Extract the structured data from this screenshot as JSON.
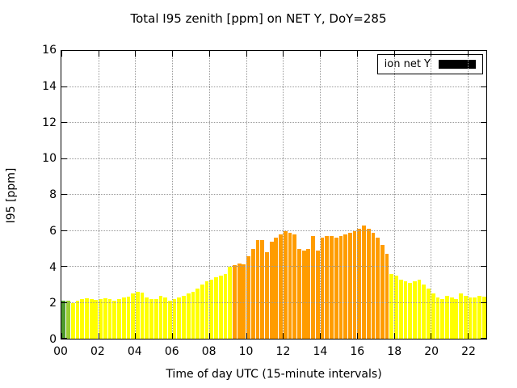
{
  "title": "Total I95 zenith [ppm] on NET Y, DoY=285",
  "xlabel": "Time of day UTC (15-minute intervals)",
  "ylabel": "I95 [ppm]",
  "legend": {
    "label": "ion net Y",
    "swatch_color": "#000000"
  },
  "chart_data": {
    "type": "bar",
    "title": "Total I95 zenith [ppm] on NET Y, DoY=285",
    "xlabel": "Time of day UTC (15-minute intervals)",
    "ylabel": "I95 [ppm]",
    "x_start_hour": 0,
    "x_end_hour": 23,
    "interval_minutes": 15,
    "ylim": [
      0,
      16
    ],
    "yticks": [
      0,
      2,
      4,
      6,
      8,
      10,
      12,
      14,
      16
    ],
    "xticks": [
      "00",
      "02",
      "04",
      "06",
      "08",
      "10",
      "12",
      "14",
      "16",
      "18",
      "20",
      "22"
    ],
    "grid": true,
    "legend_position": "top-right",
    "palette": {
      "green": "#4e9a2e",
      "lightgreen": "#9acd32",
      "yellow": "#ffff00",
      "orange": "#ff9c00"
    },
    "color_segments": [
      {
        "start_index": 0,
        "count": 1,
        "color_key": "green"
      },
      {
        "start_index": 1,
        "count": 1,
        "color_key": "lightgreen"
      },
      {
        "start_index": 2,
        "count": 35,
        "color_key": "yellow"
      },
      {
        "start_index": 37,
        "count": 34,
        "color_key": "orange"
      },
      {
        "start_index": 71,
        "count": 21,
        "color_key": "yellow"
      }
    ],
    "values": [
      2.1,
      2.1,
      2.0,
      2.1,
      2.2,
      2.25,
      2.2,
      2.15,
      2.2,
      2.25,
      2.2,
      2.1,
      2.2,
      2.3,
      2.35,
      2.5,
      2.6,
      2.55,
      2.3,
      2.2,
      2.2,
      2.4,
      2.3,
      2.1,
      2.2,
      2.3,
      2.4,
      2.5,
      2.6,
      2.8,
      3.0,
      3.2,
      3.3,
      3.4,
      3.5,
      3.6,
      4.0,
      4.1,
      4.2,
      4.15,
      4.6,
      5.0,
      5.5,
      5.5,
      4.8,
      5.4,
      5.6,
      5.8,
      6.0,
      5.9,
      5.8,
      5.0,
      4.9,
      5.0,
      5.7,
      4.9,
      5.6,
      5.7,
      5.7,
      5.6,
      5.7,
      5.8,
      5.9,
      6.0,
      6.1,
      6.3,
      6.1,
      5.9,
      5.6,
      5.2,
      4.7,
      3.6,
      3.5,
      3.3,
      3.2,
      3.1,
      3.2,
      3.3,
      3.0,
      2.8,
      2.5,
      2.3,
      2.2,
      2.4,
      2.3,
      2.2,
      2.5,
      2.4,
      2.3,
      2.3,
      2.4,
      2.35
    ]
  }
}
